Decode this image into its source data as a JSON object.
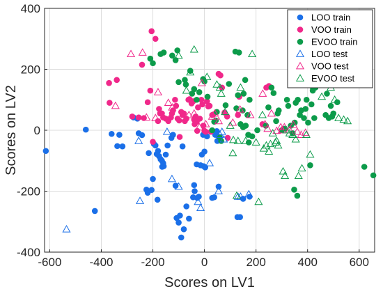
{
  "chart_data": {
    "type": "scatter",
    "xlabel": "Scores on LV1",
    "ylabel": "Scores on LV2",
    "xlim": [
      -620,
      660
    ],
    "ylim": [
      -400,
      400
    ],
    "x_ticks": [
      -600,
      -400,
      -200,
      0,
      200,
      400,
      600
    ],
    "y_ticks": [
      -400,
      -200,
      0,
      200,
      400
    ],
    "x_tick_labels": [
      "-600",
      "-400",
      "-200",
      "0",
      "200",
      "400",
      "600"
    ],
    "y_tick_labels": [
      "-400",
      "-200",
      "0",
      "200",
      "400"
    ],
    "grid": true,
    "legend_position": "top-right",
    "series": [
      {
        "name": "LOO train",
        "marker": "circle-filled",
        "color": "#1a6fe8",
        "points": [
          [
            -615,
            -68
          ],
          [
            -460,
            2
          ],
          [
            -425,
            -265
          ],
          [
            -360,
            -12
          ],
          [
            -338,
            -52
          ],
          [
            -330,
            -15
          ],
          [
            -318,
            -53
          ],
          [
            -275,
            42
          ],
          [
            -260,
            38
          ],
          [
            -255,
            -10
          ],
          [
            -242,
            -16
          ],
          [
            -225,
            -195
          ],
          [
            -220,
            -205
          ],
          [
            -216,
            -75
          ],
          [
            -205,
            -196
          ],
          [
            -200,
            -160
          ],
          [
            -196,
            -45
          ],
          [
            -190,
            -50
          ],
          [
            -185,
            -78
          ],
          [
            -182,
            -228
          ],
          [
            -180,
            -68
          ],
          [
            -176,
            -85
          ],
          [
            -170,
            -95
          ],
          [
            -165,
            -100
          ],
          [
            -164,
            -120
          ],
          [
            -160,
            -108
          ],
          [
            -158,
            -118
          ],
          [
            -150,
            -80
          ],
          [
            -143,
            -50
          ],
          [
            -128,
            -25
          ],
          [
            -122,
            -15
          ],
          [
            -112,
            -182
          ],
          [
            -108,
            -288
          ],
          [
            -100,
            -303
          ],
          [
            -95,
            -280
          ],
          [
            -90,
            -352
          ],
          [
            -85,
            -53
          ],
          [
            -80,
            -325
          ],
          [
            -70,
            -250
          ],
          [
            -60,
            -290
          ],
          [
            -44,
            -220
          ],
          [
            -40,
            -180
          ],
          [
            -38,
            -200
          ],
          [
            -30,
            -112
          ],
          [
            -28,
            -222
          ],
          [
            -22,
            -218
          ],
          [
            -15,
            -115
          ],
          [
            -10,
            -80
          ],
          [
            -5,
            -15
          ],
          [
            -3,
            -118
          ],
          [
            0,
            -70
          ],
          [
            3,
            -122
          ],
          [
            10,
            -20
          ],
          [
            30,
            -222
          ],
          [
            38,
            -220
          ],
          [
            42,
            -15
          ],
          [
            48,
            -3
          ],
          [
            50,
            -35
          ],
          [
            55,
            -185
          ],
          [
            128,
            -285
          ],
          [
            138,
            -285
          ],
          [
            150,
            -225
          ],
          [
            175,
            -218
          ]
        ]
      },
      {
        "name": "VOO train",
        "marker": "circle-filled",
        "color": "#f0288a",
        "points": [
          [
            -370,
            155
          ],
          [
            -368,
            90
          ],
          [
            -340,
            165
          ],
          [
            -280,
            45
          ],
          [
            -255,
            42
          ],
          [
            -242,
            215
          ],
          [
            -235,
            40
          ],
          [
            -220,
            92
          ],
          [
            -210,
            130
          ],
          [
            -205,
            325
          ],
          [
            -200,
            -38
          ],
          [
            -190,
            300
          ],
          [
            -180,
            30
          ],
          [
            -176,
            70
          ],
          [
            -172,
            55
          ],
          [
            -165,
            55
          ],
          [
            -160,
            42
          ],
          [
            -150,
            38
          ],
          [
            -140,
            30
          ],
          [
            -130,
            42
          ],
          [
            -126,
            55
          ],
          [
            -122,
            65
          ],
          [
            -114,
            100
          ],
          [
            -110,
            80
          ],
          [
            -104,
            38
          ],
          [
            -98,
            32
          ],
          [
            -96,
            -22
          ],
          [
            -90,
            60
          ],
          [
            -85,
            50
          ],
          [
            -80,
            55
          ],
          [
            -76,
            30
          ],
          [
            -70,
            38
          ],
          [
            -62,
            100
          ],
          [
            -58,
            102
          ],
          [
            -50,
            88
          ],
          [
            -44,
            95
          ],
          [
            -40,
            35
          ],
          [
            -38,
            20
          ],
          [
            -34,
            45
          ],
          [
            -30,
            28
          ],
          [
            -28,
            -2
          ],
          [
            -25,
            75
          ],
          [
            -18,
            38
          ],
          [
            -12,
            100
          ],
          [
            -8,
            85
          ],
          [
            -4,
            15
          ],
          [
            0,
            -2
          ],
          [
            5,
            -5
          ],
          [
            10,
            95
          ],
          [
            15,
            78
          ],
          [
            20,
            80
          ],
          [
            25,
            -5
          ],
          [
            30,
            50
          ],
          [
            35,
            52
          ],
          [
            55,
            185
          ],
          [
            62,
            180
          ],
          [
            68,
            140
          ],
          [
            78,
            58
          ],
          [
            88,
            45
          ],
          [
            90,
            -25
          ],
          [
            130,
            50
          ],
          [
            135,
            110
          ],
          [
            225,
            20
          ],
          [
            240,
            140
          ],
          [
            250,
            145
          ]
        ]
      },
      {
        "name": "EVOO train",
        "marker": "circle-filled",
        "color": "#0c9b4a",
        "points": [
          [
            -210,
            235
          ],
          [
            -200,
            220
          ],
          [
            -170,
            250
          ],
          [
            -158,
            255
          ],
          [
            -125,
            245
          ],
          [
            -112,
            230
          ],
          [
            -105,
            262
          ],
          [
            -100,
            158
          ],
          [
            -76,
            165
          ],
          [
            -72,
            150
          ],
          [
            -55,
            195
          ],
          [
            -48,
            120
          ],
          [
            -40,
            135
          ],
          [
            -30,
            100
          ],
          [
            -20,
            125
          ],
          [
            -5,
            168
          ],
          [
            0,
            160
          ],
          [
            12,
            110
          ],
          [
            30,
            0
          ],
          [
            38,
            28
          ],
          [
            44,
            32
          ],
          [
            48,
            60
          ],
          [
            58,
            -22
          ],
          [
            65,
            -35
          ],
          [
            82,
            82
          ],
          [
            95,
            152
          ],
          [
            120,
            258
          ],
          [
            124,
            72
          ],
          [
            130,
            115
          ],
          [
            134,
            255
          ],
          [
            140,
            20
          ],
          [
            148,
            65
          ],
          [
            150,
            10
          ],
          [
            152,
            120
          ],
          [
            158,
            165
          ],
          [
            160,
            15
          ],
          [
            167,
            50
          ],
          [
            170,
            -15
          ],
          [
            172,
            -40
          ],
          [
            175,
            100
          ],
          [
            185,
            -20
          ],
          [
            205,
            0
          ],
          [
            238,
            15
          ],
          [
            248,
            75
          ],
          [
            260,
            140
          ],
          [
            268,
            122
          ],
          [
            278,
            30
          ],
          [
            284,
            55
          ],
          [
            288,
            65
          ],
          [
            300,
            0
          ],
          [
            312,
            5
          ],
          [
            320,
            100
          ],
          [
            325,
            80
          ],
          [
            335,
            15
          ],
          [
            342,
            -10
          ],
          [
            348,
            -195
          ],
          [
            350,
            25
          ],
          [
            354,
            90
          ],
          [
            360,
            -215
          ],
          [
            362,
            100
          ],
          [
            370,
            50
          ],
          [
            375,
            65
          ],
          [
            386,
            40
          ],
          [
            392,
            70
          ],
          [
            396,
            100
          ],
          [
            402,
            25
          ],
          [
            410,
            -115
          ],
          [
            415,
            85
          ],
          [
            420,
            130
          ],
          [
            426,
            40
          ],
          [
            430,
            140
          ],
          [
            440,
            230
          ],
          [
            470,
            50
          ],
          [
            475,
            120
          ],
          [
            482,
            40
          ],
          [
            490,
            80
          ],
          [
            495,
            45
          ],
          [
            500,
            55
          ],
          [
            515,
            92
          ],
          [
            620,
            -120
          ],
          [
            655,
            -148
          ]
        ]
      },
      {
        "name": "LOO test",
        "marker": "triangle-open",
        "color": "#1a6fe8",
        "points": [
          [
            -535,
            -325
          ],
          [
            -255,
            -35
          ],
          [
            -250,
            -232
          ],
          [
            -145,
            -5
          ],
          [
            -126,
            -160
          ],
          [
            -100,
            -185
          ],
          [
            -25,
            -235
          ],
          [
            -15,
            -255
          ],
          [
            20,
            -108
          ],
          [
            55,
            -200
          ],
          [
            60,
            -15
          ],
          [
            68,
            -5
          ],
          [
            75,
            -30
          ],
          [
            130,
            -218
          ],
          [
            140,
            -218
          ],
          [
            172,
            -210
          ]
        ]
      },
      {
        "name": "VOO test",
        "marker": "triangle-open",
        "color": "#f0288a",
        "points": [
          [
            -345,
            80
          ],
          [
            -285,
            250
          ],
          [
            -240,
            255
          ],
          [
            -225,
            42
          ],
          [
            -190,
            40
          ],
          [
            -180,
            125
          ],
          [
            -140,
            90
          ],
          [
            -125,
            75
          ],
          [
            -60,
            50
          ],
          [
            -40,
            55
          ],
          [
            -20,
            10
          ],
          [
            -10,
            155
          ],
          [
            5,
            20
          ],
          [
            30,
            45
          ],
          [
            40,
            55
          ],
          [
            55,
            30
          ],
          [
            110,
            25
          ],
          [
            138,
            68
          ],
          [
            178,
            50
          ],
          [
            226,
            120
          ],
          [
            235,
            20
          ],
          [
            245,
            5
          ],
          [
            260,
            55
          ],
          [
            280,
            -2
          ],
          [
            296,
            10
          ],
          [
            300,
            0
          ],
          [
            310,
            10
          ],
          [
            330,
            0
          ],
          [
            345,
            18
          ],
          [
            360,
            -5
          ],
          [
            375,
            -15
          ],
          [
            392,
            -8
          ]
        ]
      },
      {
        "name": "EVOO test",
        "marker": "triangle-open",
        "color": "#0c9b4a",
        "points": [
          [
            -100,
            245
          ],
          [
            -70,
            130
          ],
          [
            -55,
            190
          ],
          [
            -40,
            265
          ],
          [
            10,
            175
          ],
          [
            48,
            150
          ],
          [
            60,
            140
          ],
          [
            65,
            120
          ],
          [
            80,
            60
          ],
          [
            100,
            15
          ],
          [
            110,
            -75
          ],
          [
            112,
            -32
          ],
          [
            125,
            -215
          ],
          [
            130,
            -35
          ],
          [
            140,
            140
          ],
          [
            160,
            -35
          ],
          [
            185,
            250
          ],
          [
            200,
            -40
          ],
          [
            210,
            -235
          ],
          [
            225,
            50
          ],
          [
            230,
            -60
          ],
          [
            240,
            -50
          ],
          [
            250,
            -70
          ],
          [
            256,
            -45
          ],
          [
            265,
            -10
          ],
          [
            275,
            -40
          ],
          [
            280,
            -35
          ],
          [
            286,
            -50
          ],
          [
            305,
            -135
          ],
          [
            312,
            -150
          ],
          [
            318,
            0
          ],
          [
            330,
            -10
          ],
          [
            342,
            -15
          ],
          [
            354,
            -30
          ],
          [
            365,
            -150
          ],
          [
            378,
            -125
          ],
          [
            395,
            -15
          ],
          [
            410,
            -80
          ],
          [
            425,
            145
          ],
          [
            455,
            110
          ],
          [
            475,
            160
          ],
          [
            490,
            140
          ],
          [
            505,
            100
          ],
          [
            520,
            40
          ],
          [
            540,
            35
          ],
          [
            555,
            30
          ]
        ]
      }
    ]
  }
}
